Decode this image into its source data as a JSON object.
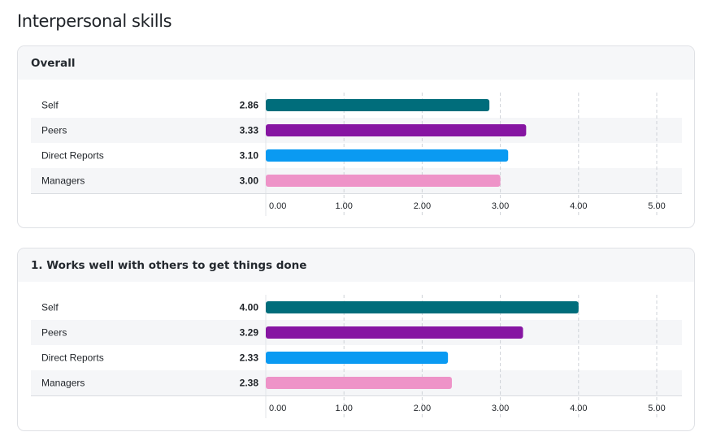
{
  "page": {
    "title": "Interpersonal skills"
  },
  "colors": {
    "Self": "#006d7b",
    "Peers": "#8615a2",
    "Direct Reports": "#0a9af2",
    "Managers": "#ee93c8",
    "stripe": "#f5f6f8",
    "grid": "#cfd3d8"
  },
  "chart_data": [
    {
      "type": "bar",
      "orientation": "horizontal",
      "title": "Overall",
      "categories": [
        "Self",
        "Peers",
        "Direct Reports",
        "Managers"
      ],
      "values": [
        2.86,
        3.33,
        3.1,
        3.0
      ],
      "value_labels": [
        "2.86",
        "3.33",
        "3.10",
        "3.00"
      ],
      "xlim": [
        0,
        5
      ],
      "xticks": [
        "0.00",
        "1.00",
        "2.00",
        "3.00",
        "4.00",
        "5.00"
      ],
      "grid": true
    },
    {
      "type": "bar",
      "orientation": "horizontal",
      "title": "1. Works well with others to get things done",
      "categories": [
        "Self",
        "Peers",
        "Direct Reports",
        "Managers"
      ],
      "values": [
        4.0,
        3.29,
        2.33,
        2.38
      ],
      "value_labels": [
        "4.00",
        "3.29",
        "2.33",
        "2.38"
      ],
      "xlim": [
        0,
        5
      ],
      "xticks": [
        "0.00",
        "1.00",
        "2.00",
        "3.00",
        "4.00",
        "5.00"
      ],
      "grid": true
    }
  ]
}
